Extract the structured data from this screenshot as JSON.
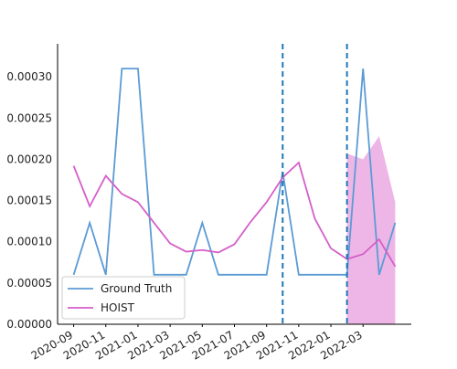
{
  "chart_data": {
    "type": "line",
    "x": [
      "2020-09",
      "2020-10",
      "2020-11",
      "2020-12",
      "2021-01",
      "2021-02",
      "2021-03",
      "2021-04",
      "2021-05",
      "2021-06",
      "2021-07",
      "2021-08",
      "2021-09",
      "2021-10",
      "2021-11",
      "2021-12",
      "2022-01",
      "2022-02",
      "2022-03",
      "2022-04",
      "2022-05"
    ],
    "series": [
      {
        "name": "Ground Truth",
        "color": "#5b9bd5",
        "values": [
          6e-05,
          0.000123,
          6e-05,
          0.00031,
          0.00031,
          6e-05,
          6e-05,
          6e-05,
          0.000123,
          6e-05,
          6e-05,
          6e-05,
          6e-05,
          0.000185,
          6e-05,
          6e-05,
          6e-05,
          6e-05,
          0.00031,
          6e-05,
          0.000123
        ]
      },
      {
        "name": "HOIST",
        "color": "#d45fc8",
        "values": [
          0.000192,
          0.000143,
          0.00018,
          0.000158,
          0.000148,
          0.000123,
          9.8e-05,
          8.8e-05,
          9e-05,
          8.7e-05,
          9.7e-05,
          0.000124,
          0.000148,
          0.000178,
          0.000196,
          0.000128,
          9.2e-05,
          7.9e-05,
          8.5e-05,
          0.000103,
          7e-05
        ]
      }
    ],
    "band": {
      "x": [
        "2022-02",
        "2022-03",
        "2022-04",
        "2022-05"
      ],
      "upper": [
        0.000207,
        0.0002,
        0.000228,
        0.000148
      ],
      "lower": [
        0,
        0,
        0,
        0
      ],
      "color": "#eeb6e6"
    },
    "vlines": {
      "x": [
        "2021-10",
        "2022-02"
      ],
      "color": "#1f77b4"
    },
    "xlim": [
      "2020-08",
      "2022-06"
    ],
    "xticks": [
      "2020-09",
      "2020-11",
      "2021-01",
      "2021-03",
      "2021-05",
      "2021-07",
      "2021-09",
      "2021-11",
      "2022-01",
      "2022-03"
    ],
    "ylim": [
      0,
      0.00034
    ],
    "yticks": [
      {
        "value": 0,
        "label": "0.00000"
      },
      {
        "value": 5e-05,
        "label": "0.00005"
      },
      {
        "value": 0.0001,
        "label": "0.00010"
      },
      {
        "value": 0.00015,
        "label": "0.00015"
      },
      {
        "value": 0.0002,
        "label": "0.00020"
      },
      {
        "value": 0.00025,
        "label": "0.00025"
      },
      {
        "value": 0.0003,
        "label": "0.00030"
      }
    ],
    "legend": "lower left",
    "grid": false
  }
}
